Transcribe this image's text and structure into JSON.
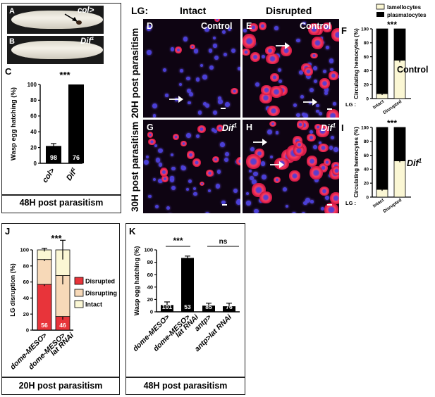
{
  "panel_letters": {
    "A": "A",
    "B": "B",
    "C": "C",
    "D": "D",
    "E": "E",
    "F": "F",
    "G": "G",
    "H": "H",
    "I": "I",
    "J": "J",
    "K": "K"
  },
  "larva": {
    "a_genotype": "col>",
    "b_genotype_base": "Dif",
    "b_genotype_sup": "1"
  },
  "micro": {
    "lg_label": "LG:",
    "intact": "Intact",
    "disrupted": "Disrupted",
    "row1": "20H post parasitism",
    "row2": "30H post parasitism",
    "control": "Control",
    "dif_base": "Dif",
    "dif_sup": "1"
  },
  "captions": {
    "abc": "48H post parasitism",
    "j": "20H post parasitism",
    "k": "48H post parasitism"
  },
  "side_labels": {
    "control": "Control",
    "dif_base": "Dif",
    "dif_sup": "1"
  },
  "colors": {
    "disrupted": "#e8343a",
    "disrupting": "#f7d9b8",
    "intact": "#fbf7d4",
    "lamellocytes": "#fbf7d4",
    "plasmatocytes": "#000000",
    "bar_black": "#000000"
  },
  "chart_data": [
    {
      "id": "C",
      "type": "bar",
      "ylabel": "Wasp egg hatching (%)",
      "categories": [
        "col>",
        "Dif1"
      ],
      "values": [
        22,
        100
      ],
      "errors": [
        3,
        0
      ],
      "n": [
        "98",
        "76"
      ],
      "significance": "***",
      "ylim": [
        0,
        100
      ],
      "yticks": [
        "0",
        "20",
        "40",
        "60",
        "80",
        "100"
      ]
    },
    {
      "id": "F",
      "type": "bar",
      "stacked": true,
      "ylabel": "Circulating hemocytes (%)",
      "xlabel_prefix": "LG :",
      "categories": [
        "Intact",
        "Disrupted"
      ],
      "series": [
        {
          "name": "lamellocytes",
          "values": [
            7,
            55
          ]
        },
        {
          "name": "plasmatocytes",
          "values": [
            93,
            45
          ]
        }
      ],
      "errors": [
        2,
        3
      ],
      "significance": "***",
      "ylim": [
        0,
        100
      ],
      "yticks": [
        "0",
        "20",
        "40",
        "60",
        "80",
        "100"
      ],
      "legend": [
        "lamellocytes",
        "plasmatocytes"
      ]
    },
    {
      "id": "I",
      "type": "bar",
      "stacked": true,
      "ylabel": "Circulating hemocytes (%)",
      "xlabel_prefix": "LG :",
      "categories": [
        "Intact",
        "Disrupted"
      ],
      "series": [
        {
          "name": "lamellocytes",
          "values": [
            11,
            52
          ]
        },
        {
          "name": "plasmatocytes",
          "values": [
            89,
            48
          ]
        }
      ],
      "errors": [
        2,
        2
      ],
      "significance": "***",
      "ylim": [
        0,
        100
      ],
      "yticks": [
        "0",
        "20",
        "40",
        "60",
        "80",
        "100"
      ]
    },
    {
      "id": "J",
      "type": "bar",
      "stacked": true,
      "ylabel": "LG disruption (%)",
      "categories": [
        "dome-MESO>",
        "dome-MESO>lat RNAi"
      ],
      "tick_labels": [
        [
          "dome-MESO>"
        ],
        [
          "dome-MESO>",
          "lat RNAi"
        ]
      ],
      "series": [
        {
          "name": "Disrupted",
          "values": [
            57,
            17
          ]
        },
        {
          "name": "Disrupting",
          "values": [
            31,
            51
          ]
        },
        {
          "name": "Intact",
          "values": [
            12,
            32
          ]
        }
      ],
      "errors": [
        [
          2,
          4
        ],
        [
          2,
          11
        ],
        [
          2,
          12
        ]
      ],
      "n": [
        "56",
        "46"
      ],
      "significance": "***",
      "ylim": [
        0,
        100
      ],
      "yticks": [
        "0",
        "20",
        "40",
        "60",
        "80",
        "100"
      ],
      "legend": [
        "Disrupted",
        "Disrupting",
        "Intact"
      ]
    },
    {
      "id": "K",
      "type": "bar",
      "ylabel": "Wasp egg hatching (%)",
      "categories": [
        "dome-MESO>",
        "dome-MESO>lat RNAi",
        "antp>",
        "antp>lat RNAi"
      ],
      "tick_labels": [
        [
          "dome-MESO>"
        ],
        [
          "dome-MESO>",
          "lat RNAi"
        ],
        [
          "antp>"
        ],
        [
          "antp>lat RNAi"
        ]
      ],
      "values": [
        11,
        87,
        10,
        9
      ],
      "errors": [
        5,
        3,
        4,
        5
      ],
      "n": [
        "101",
        "53",
        "85",
        "76"
      ],
      "significance": [
        "***",
        "ns"
      ],
      "ylim": [
        0,
        100
      ],
      "yticks": [
        "0",
        "20",
        "40",
        "60",
        "80",
        "100"
      ]
    }
  ]
}
